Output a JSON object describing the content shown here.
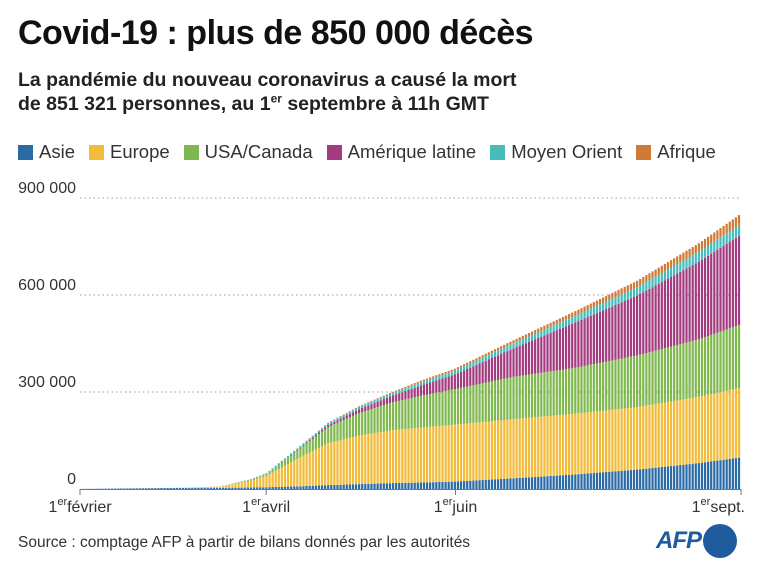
{
  "title": "Covid-19 : plus de 850 000 décès",
  "subtitle": {
    "line1": "La pandémie du nouveau coronavirus a causé la mort",
    "line2_pre": "de 851 321 personnes, au 1",
    "line2_sup": "er",
    "line2_post": " septembre à 11h GMT"
  },
  "source": "Source : comptage AFP à partir de bilans donnés par les autorités",
  "logo": {
    "text": "AFP"
  },
  "chart_data": {
    "type": "area",
    "stacked": true,
    "title": "Covid-19 : plus de 850 000 décès",
    "xlabel": "",
    "ylabel": "",
    "ylim": [
      0,
      900000
    ],
    "yticks": [
      0,
      300000,
      600000,
      900000
    ],
    "ytick_labels": [
      "0",
      "300 000",
      "600 000",
      "900 000"
    ],
    "xticks": [
      {
        "day": 0,
        "label": "1",
        "sup": "er",
        "post": "février"
      },
      {
        "day": 60,
        "label": "1",
        "sup": "er",
        "post": "avril"
      },
      {
        "day": 121,
        "label": "1",
        "sup": "er",
        "post": "juin"
      },
      {
        "day": 213,
        "label": "1",
        "sup": "er",
        "post": "sept."
      }
    ],
    "x_start": "2020-02-01",
    "x_end": "2020-09-01",
    "grid": true,
    "legend_position": "top",
    "days": [
      0,
      30,
      45,
      55,
      60,
      70,
      80,
      90,
      100,
      110,
      121,
      140,
      160,
      180,
      200,
      213
    ],
    "series": [
      {
        "name": "Asie",
        "color": "#2a6aa5",
        "values": [
          300,
          3300,
          3600,
          4500,
          5500,
          8000,
          12000,
          15000,
          18000,
          20000,
          23000,
          33000,
          45000,
          60000,
          80000,
          97000
        ]
      },
      {
        "name": "Europe",
        "color": "#f2bb3a",
        "values": [
          0,
          30,
          4000,
          22000,
          35000,
          85000,
          130000,
          150000,
          163000,
          170000,
          176000,
          183000,
          188000,
          193000,
          205000,
          215000
        ]
      },
      {
        "name": "USA/Canada",
        "color": "#80b850",
        "values": [
          0,
          0,
          80,
          3000,
          5000,
          25000,
          50000,
          70000,
          85000,
          98000,
          110000,
          131000,
          142000,
          160000,
          178000,
          195000
        ]
      },
      {
        "name": "Amérique latine",
        "color": "#a23c7e",
        "values": [
          0,
          0,
          5,
          200,
          400,
          2000,
          6000,
          12000,
          20000,
          32000,
          45000,
          88000,
          140000,
          185000,
          240000,
          275000
        ]
      },
      {
        "name": "Moyen Orient",
        "color": "#48bcbc",
        "values": [
          0,
          0,
          50,
          1000,
          3000,
          5000,
          6000,
          7000,
          8000,
          10000,
          12000,
          16000,
          21000,
          26000,
          31000,
          35000
        ]
      },
      {
        "name": "Afrique",
        "color": "#d07a35",
        "values": [
          0,
          0,
          0,
          20,
          100,
          500,
          1000,
          2000,
          3000,
          5000,
          6000,
          9000,
          14000,
          20000,
          26000,
          30000
        ]
      }
    ]
  }
}
